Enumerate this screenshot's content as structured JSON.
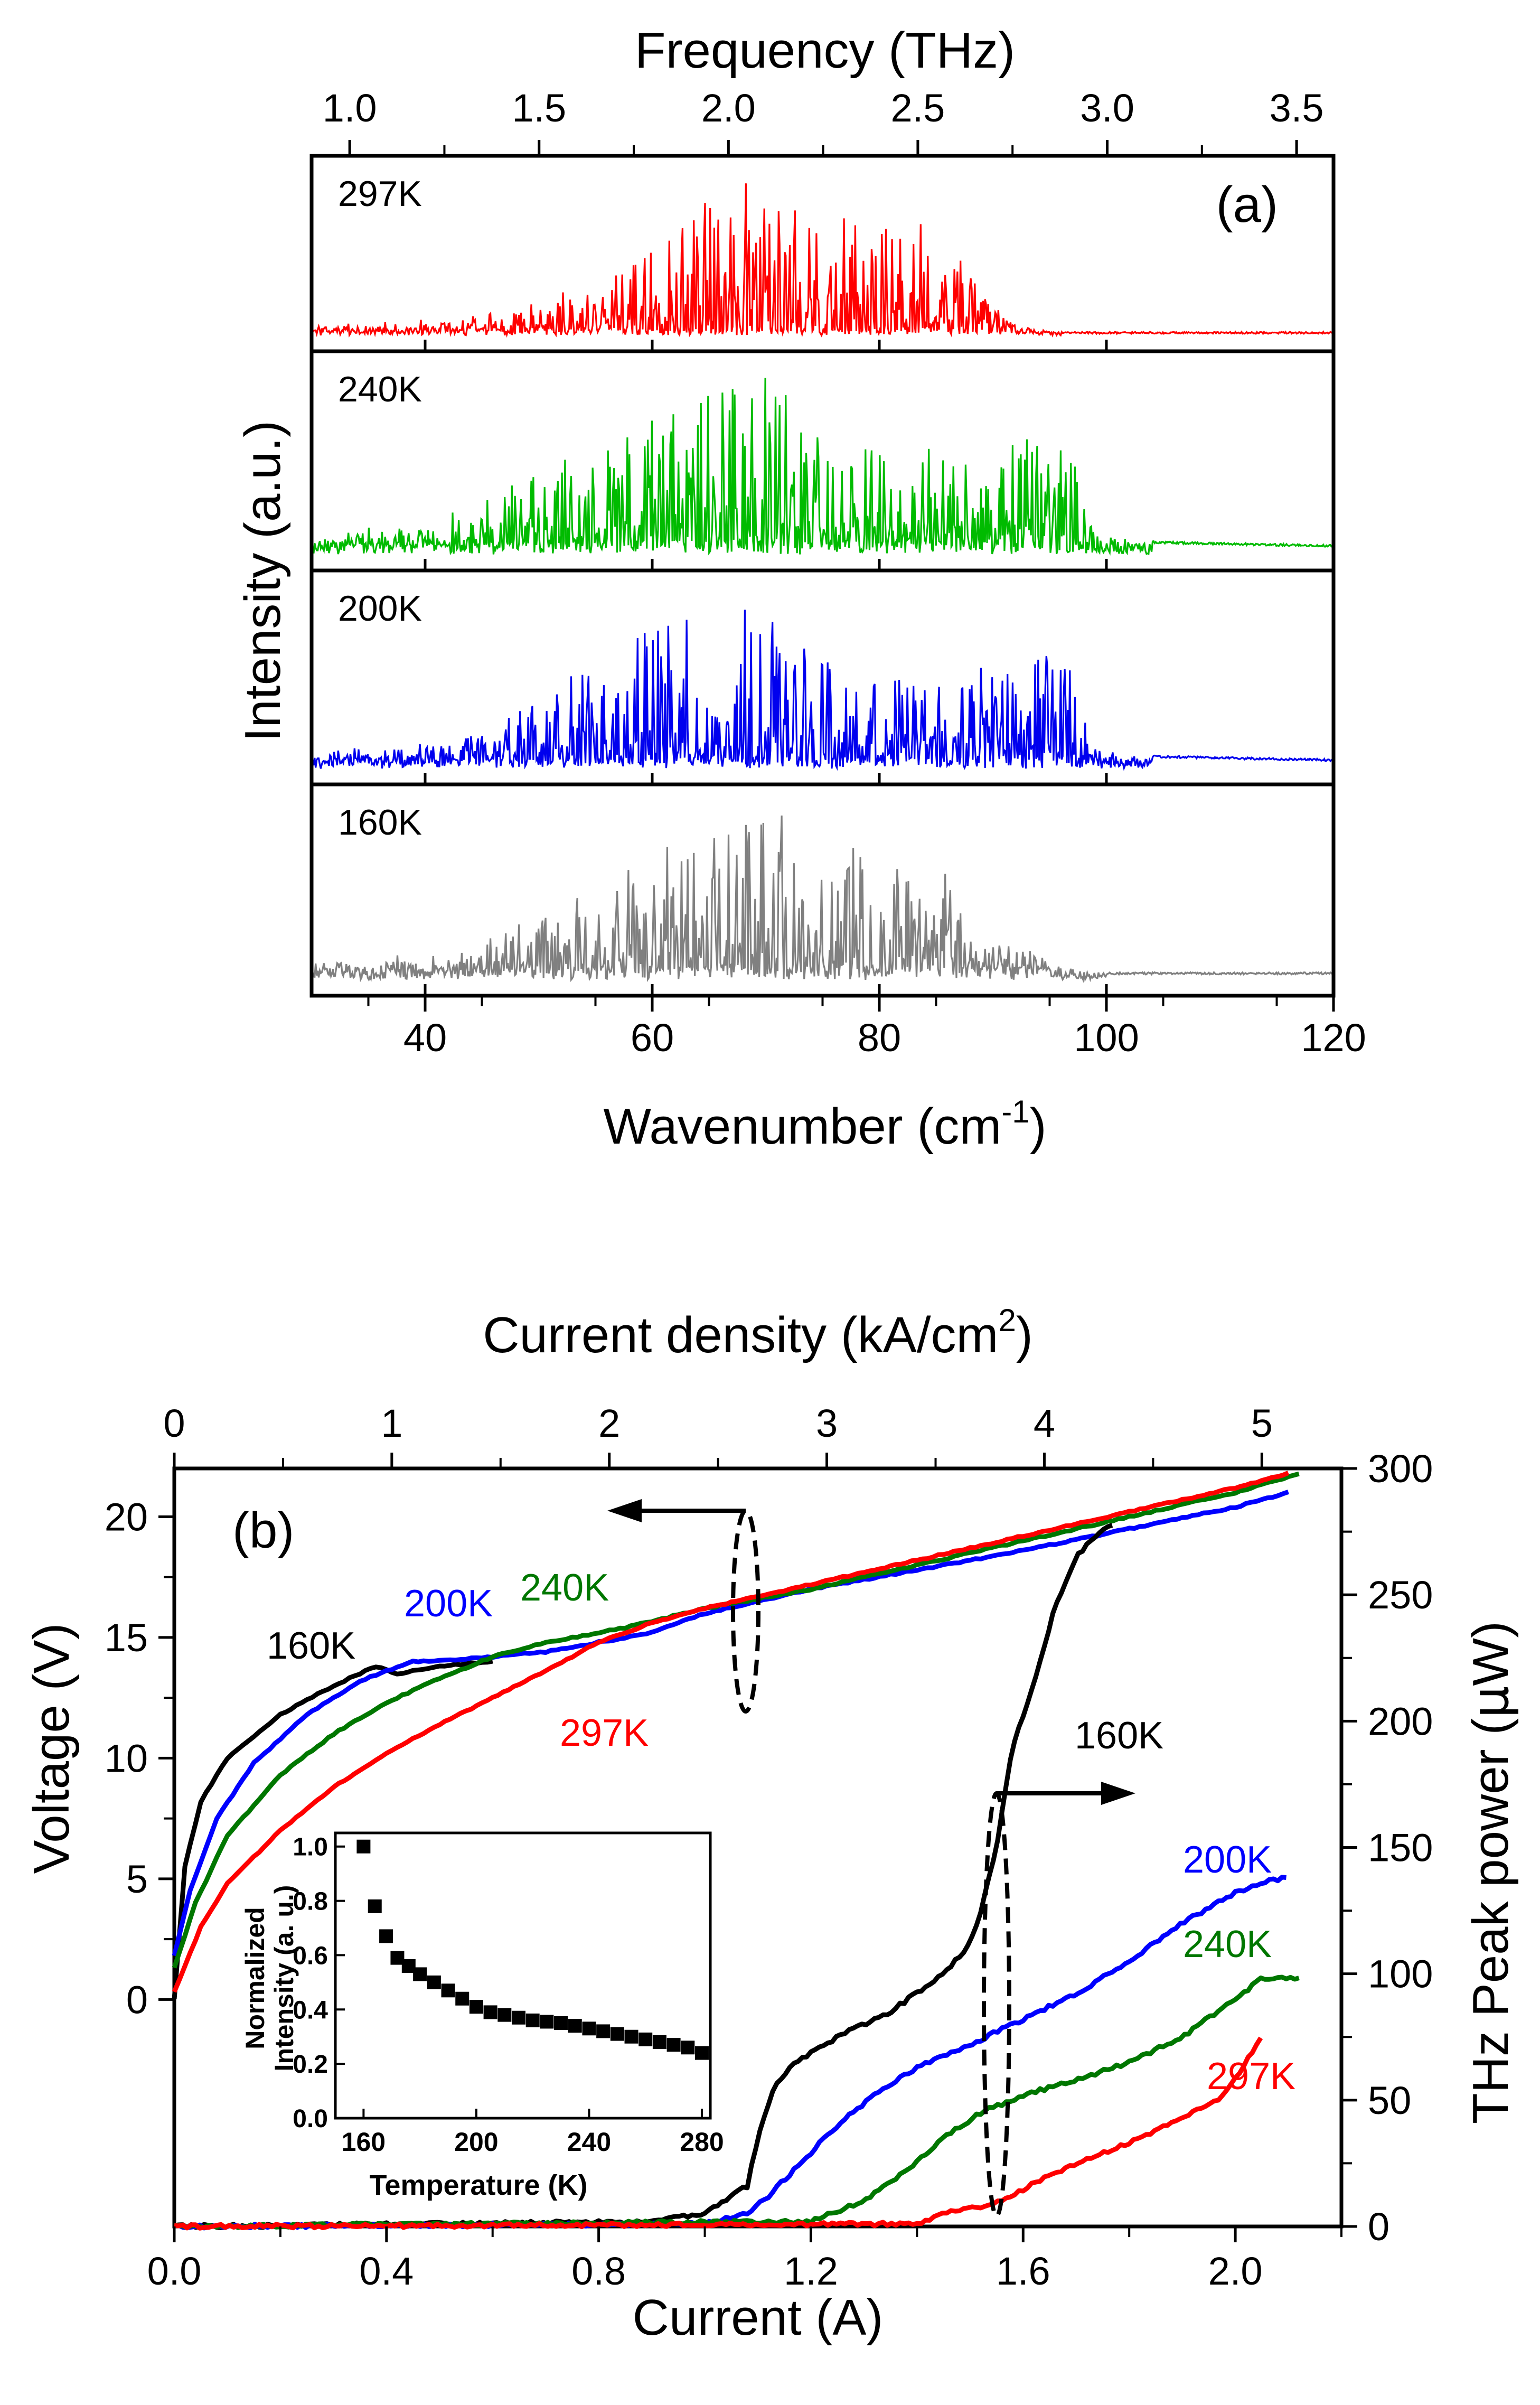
{
  "chart_data": [
    {
      "id": "a",
      "type": "line",
      "panel_label": "(a)",
      "xlabel": "Wavenumber (cm",
      "xlabel_sup": "-1",
      "xlabel_tail": ")",
      "top_xlabel": "Frequency (THz)",
      "ylabel": "Intensity (a.u.)",
      "xlim": [
        30,
        120
      ],
      "x_ticks": [
        40,
        60,
        80,
        100,
        120
      ],
      "top_ticks": [
        "1.0",
        "1.5",
        "2.0",
        "2.5",
        "3.0",
        "3.5"
      ],
      "top_tick_values": [
        1.0,
        1.5,
        2.0,
        2.5,
        3.0,
        3.5
      ],
      "thz_per_cm": 0.029979,
      "series": [
        {
          "name": "297K",
          "color": "#ff0000",
          "seed": 297,
          "cutoff": 88,
          "tail": 96,
          "noise": 0.04,
          "envelope": [
            [
              30,
              0.03
            ],
            [
              40,
              0.06
            ],
            [
              48,
              0.14
            ],
            [
              52,
              0.25
            ],
            [
              56,
              0.32
            ],
            [
              60,
              0.55
            ],
            [
              65,
              0.82
            ],
            [
              70,
              1.0
            ],
            [
              74,
              0.72
            ],
            [
              78,
              0.72
            ],
            [
              82,
              0.72
            ],
            [
              86,
              0.6
            ],
            [
              88,
              0.35
            ],
            [
              92,
              0.06
            ],
            [
              96,
              0.0
            ],
            [
              120,
              0.0
            ]
          ]
        },
        {
          "name": "240K",
          "color": "#00bb00",
          "seed": 240,
          "cutoff": 98,
          "tail": 104,
          "noise": 0.07,
          "envelope": [
            [
              30,
              0.05
            ],
            [
              40,
              0.12
            ],
            [
              45,
              0.22
            ],
            [
              50,
              0.45
            ],
            [
              55,
              0.55
            ],
            [
              60,
              0.72
            ],
            [
              65,
              0.85
            ],
            [
              70,
              1.0
            ],
            [
              74,
              0.7
            ],
            [
              78,
              0.55
            ],
            [
              82,
              0.5
            ],
            [
              86,
              0.52
            ],
            [
              90,
              0.55
            ],
            [
              94,
              0.6
            ],
            [
              97,
              0.52
            ],
            [
              99,
              0.1
            ],
            [
              104,
              0.05
            ],
            [
              120,
              0.03
            ]
          ]
        },
        {
          "name": "200K",
          "color": "#0000ee",
          "seed": 200,
          "cutoff": 98,
          "tail": 104,
          "noise": 0.06,
          "envelope": [
            [
              30,
              0.04
            ],
            [
              40,
              0.1
            ],
            [
              45,
              0.18
            ],
            [
              50,
              0.4
            ],
            [
              55,
              0.55
            ],
            [
              60,
              0.75
            ],
            [
              65,
              0.88
            ],
            [
              70,
              1.0
            ],
            [
              74,
              0.6
            ],
            [
              78,
              0.5
            ],
            [
              82,
              0.46
            ],
            [
              86,
              0.5
            ],
            [
              90,
              0.5
            ],
            [
              94,
              0.6
            ],
            [
              97,
              0.55
            ],
            [
              99,
              0.1
            ],
            [
              104,
              0.05
            ],
            [
              120,
              0.03
            ]
          ]
        },
        {
          "name": "160K",
          "color": "#808080",
          "seed": 160,
          "cutoff": 95,
          "tail": 100,
          "noise": 0.07,
          "envelope": [
            [
              30,
              0.05
            ],
            [
              40,
              0.08
            ],
            [
              45,
              0.15
            ],
            [
              50,
              0.3
            ],
            [
              55,
              0.45
            ],
            [
              60,
              0.7
            ],
            [
              65,
              0.85
            ],
            [
              70,
              1.0
            ],
            [
              74,
              0.72
            ],
            [
              78,
              0.72
            ],
            [
              82,
              0.62
            ],
            [
              86,
              0.6
            ],
            [
              88,
              0.2
            ],
            [
              92,
              0.12
            ],
            [
              96,
              0.06
            ],
            [
              100,
              0.02
            ],
            [
              120,
              0.02
            ]
          ]
        }
      ]
    },
    {
      "id": "b",
      "type": "line",
      "panel_label": "(b)",
      "xlabel": "Current (A)",
      "top_xlabel": "Current density (kA/cm",
      "top_xlabel_sup": "2",
      "top_xlabel_tail": ")",
      "ylabel_left": "Voltage (V)",
      "ylabel_right": "THz Peak power (",
      "ylabel_right_mu": "μ",
      "ylabel_right_tail": "W)",
      "xlim": [
        0.0,
        2.2
      ],
      "x_ticks": [
        "0.0",
        "0.4",
        "0.8",
        "1.2",
        "1.6",
        "2.0"
      ],
      "x_tick_values": [
        0.0,
        0.4,
        0.8,
        1.2,
        1.6,
        2.0
      ],
      "top_ticks": [
        "0",
        "1",
        "2",
        "3",
        "4",
        "5"
      ],
      "top_tick_values": [
        0,
        1,
        2,
        3,
        4,
        5
      ],
      "a_per_kacm2": 0.41,
      "left_ylim": [
        -9.4,
        22
      ],
      "left_ticks": [
        "0",
        "5",
        "10",
        "15",
        "20"
      ],
      "left_tick_values": [
        0,
        5,
        10,
        15,
        20
      ],
      "right_ylim": [
        0,
        300
      ],
      "right_ticks": [
        "0",
        "50",
        "100",
        "150",
        "200",
        "250",
        "300"
      ],
      "right_tick_values": [
        0,
        50,
        100,
        150,
        200,
        250,
        300
      ],
      "voltage_series": [
        {
          "name": "160K",
          "color": "#000000",
          "points": [
            [
              0.0,
              0.0
            ],
            [
              0.02,
              5.5
            ],
            [
              0.05,
              8.2
            ],
            [
              0.1,
              10.0
            ],
            [
              0.2,
              11.8
            ],
            [
              0.3,
              13.0
            ],
            [
              0.38,
              13.8
            ],
            [
              0.42,
              13.5
            ],
            [
              0.5,
              13.8
            ],
            [
              0.6,
              14.0
            ]
          ]
        },
        {
          "name": "200K",
          "color": "#0000ff",
          "points": [
            [
              0.0,
              1.8
            ],
            [
              0.03,
              4.5
            ],
            [
              0.08,
              7.5
            ],
            [
              0.15,
              9.8
            ],
            [
              0.25,
              11.8
            ],
            [
              0.35,
              13.2
            ],
            [
              0.45,
              14.0
            ],
            [
              0.55,
              14.1
            ],
            [
              0.7,
              14.4
            ],
            [
              0.9,
              15.2
            ],
            [
              1.0,
              16.0
            ],
            [
              1.2,
              17.0
            ],
            [
              1.4,
              17.8
            ],
            [
              1.6,
              18.6
            ],
            [
              1.8,
              19.5
            ],
            [
              2.0,
              20.4
            ],
            [
              2.1,
              21.0
            ]
          ]
        },
        {
          "name": "240K",
          "color": "#007700",
          "points": [
            [
              0.0,
              1.3
            ],
            [
              0.04,
              4.0
            ],
            [
              0.1,
              6.8
            ],
            [
              0.2,
              9.3
            ],
            [
              0.3,
              11.0
            ],
            [
              0.4,
              12.3
            ],
            [
              0.5,
              13.3
            ],
            [
              0.6,
              14.2
            ],
            [
              0.7,
              14.8
            ],
            [
              0.85,
              15.4
            ],
            [
              1.0,
              16.2
            ],
            [
              1.2,
              17.0
            ],
            [
              1.4,
              18.0
            ],
            [
              1.6,
              19.0
            ],
            [
              1.8,
              20.0
            ],
            [
              2.0,
              21.0
            ],
            [
              2.12,
              21.8
            ]
          ]
        },
        {
          "name": "297K",
          "color": "#ff0000",
          "points": [
            [
              0.0,
              0.3
            ],
            [
              0.05,
              3.0
            ],
            [
              0.1,
              4.8
            ],
            [
              0.2,
              7.0
            ],
            [
              0.3,
              8.8
            ],
            [
              0.4,
              10.2
            ],
            [
              0.5,
              11.4
            ],
            [
              0.6,
              12.5
            ],
            [
              0.7,
              13.6
            ],
            [
              0.8,
              14.8
            ],
            [
              0.9,
              15.6
            ],
            [
              1.0,
              16.2
            ],
            [
              1.2,
              17.2
            ],
            [
              1.4,
              18.2
            ],
            [
              1.6,
              19.2
            ],
            [
              1.8,
              20.2
            ],
            [
              2.0,
              21.2
            ],
            [
              2.1,
              21.8
            ]
          ]
        }
      ],
      "power_series": [
        {
          "name": "160K",
          "color": "#000000",
          "points": [
            [
              0.0,
              0
            ],
            [
              0.9,
              2
            ],
            [
              1.0,
              5
            ],
            [
              1.05,
              12
            ],
            [
              1.08,
              16
            ],
            [
              1.1,
              35
            ],
            [
              1.13,
              55
            ],
            [
              1.17,
              65
            ],
            [
              1.25,
              75
            ],
            [
              1.35,
              85
            ],
            [
              1.45,
              100
            ],
            [
              1.5,
              112
            ],
            [
              1.52,
              125
            ],
            [
              1.55,
              150
            ],
            [
              1.58,
              190
            ],
            [
              1.62,
              215
            ],
            [
              1.66,
              245
            ],
            [
              1.7,
              265
            ],
            [
              1.73,
              272
            ],
            [
              1.77,
              278
            ]
          ]
        },
        {
          "name": "200K",
          "color": "#0000ff",
          "points": [
            [
              0.0,
              0
            ],
            [
              1.0,
              1
            ],
            [
              1.08,
              5
            ],
            [
              1.12,
              12
            ],
            [
              1.18,
              25
            ],
            [
              1.25,
              40
            ],
            [
              1.32,
              52
            ],
            [
              1.4,
              63
            ],
            [
              1.5,
              72
            ],
            [
              1.6,
              82
            ],
            [
              1.7,
              92
            ],
            [
              1.8,
              105
            ],
            [
              1.9,
              120
            ],
            [
              2.0,
              132
            ],
            [
              2.06,
              137
            ],
            [
              2.1,
              138
            ]
          ]
        },
        {
          "name": "240K",
          "color": "#007700",
          "points": [
            [
              0.0,
              0
            ],
            [
              1.2,
              2
            ],
            [
              1.3,
              10
            ],
            [
              1.38,
              22
            ],
            [
              1.45,
              35
            ],
            [
              1.52,
              45
            ],
            [
              1.6,
              52
            ],
            [
              1.7,
              58
            ],
            [
              1.8,
              65
            ],
            [
              1.9,
              75
            ],
            [
              2.0,
              90
            ],
            [
              2.05,
              98
            ],
            [
              2.12,
              98
            ]
          ]
        },
        {
          "name": "297K",
          "color": "#ff0000",
          "points": [
            [
              0.0,
              0
            ],
            [
              1.4,
              1
            ],
            [
              1.45,
              5
            ],
            [
              1.52,
              8
            ],
            [
              1.58,
              12
            ],
            [
              1.62,
              17
            ],
            [
              1.7,
              25
            ],
            [
              1.8,
              33
            ],
            [
              1.9,
              43
            ],
            [
              1.98,
              52
            ],
            [
              2.02,
              65
            ],
            [
              2.05,
              75
            ]
          ]
        }
      ],
      "annotations": {
        "left_arrow_label": "",
        "labels": [
          {
            "text": "160K",
            "color": "#000000"
          },
          {
            "text": "200K",
            "color": "#0000ff"
          },
          {
            "text": "240K",
            "color": "#007700"
          },
          {
            "text": "297K",
            "color": "#ff0000"
          },
          {
            "text": "160K",
            "color": "#000000"
          },
          {
            "text": "200K",
            "color": "#0000ff"
          },
          {
            "text": "240K",
            "color": "#007700"
          },
          {
            "text": "297K",
            "color": "#ff0000"
          }
        ]
      }
    },
    {
      "id": "inset",
      "type": "scatter",
      "xlabel": "Temperature (K)",
      "ylabel_1": "Normalized",
      "ylabel_2": "Intensity (a. u.)",
      "xlim": [
        150,
        283
      ],
      "ylim": [
        0.0,
        1.05
      ],
      "x_ticks": [
        "160",
        "200",
        "240",
        "280"
      ],
      "x_tick_values": [
        160,
        200,
        240,
        280
      ],
      "y_ticks": [
        "0.0",
        "0.2",
        "0.4",
        "0.6",
        "0.8",
        "1.0"
      ],
      "y_tick_values": [
        0.0,
        0.2,
        0.4,
        0.6,
        0.8,
        1.0
      ],
      "points": [
        [
          160,
          1.0
        ],
        [
          164,
          0.78
        ],
        [
          168,
          0.67
        ],
        [
          172,
          0.59
        ],
        [
          176,
          0.56
        ],
        [
          180,
          0.53
        ],
        [
          185,
          0.5
        ],
        [
          190,
          0.47
        ],
        [
          195,
          0.44
        ],
        [
          200,
          0.41
        ],
        [
          205,
          0.39
        ],
        [
          210,
          0.38
        ],
        [
          215,
          0.37
        ],
        [
          220,
          0.36
        ],
        [
          225,
          0.355
        ],
        [
          230,
          0.35
        ],
        [
          235,
          0.34
        ],
        [
          240,
          0.33
        ],
        [
          245,
          0.32
        ],
        [
          250,
          0.31
        ],
        [
          255,
          0.3
        ],
        [
          260,
          0.29
        ],
        [
          265,
          0.28
        ],
        [
          270,
          0.27
        ],
        [
          275,
          0.26
        ],
        [
          280,
          0.24
        ]
      ]
    }
  ]
}
